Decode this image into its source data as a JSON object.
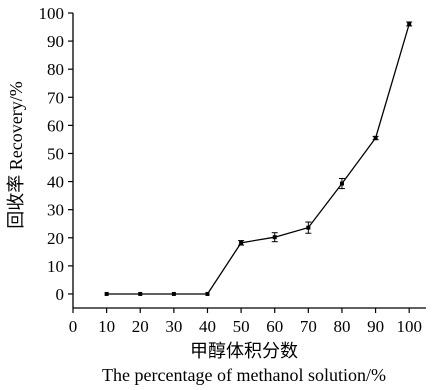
{
  "chart_data": {
    "type": "line",
    "xlabel_cn": "甲醇体积分数",
    "xlabel_en": "The percentage of methanol solution/%",
    "ylabel": "回收率 Recovery/%",
    "xlim": [
      0,
      105
    ],
    "ylim": [
      -5,
      100
    ],
    "xticks": [
      0,
      10,
      20,
      30,
      40,
      50,
      60,
      70,
      80,
      90,
      100
    ],
    "yticks": [
      0,
      10,
      20,
      30,
      40,
      50,
      60,
      70,
      80,
      90,
      100
    ],
    "grid": false,
    "series": [
      {
        "x": [
          10,
          20,
          30,
          40,
          50,
          60,
          70,
          80,
          90,
          100
        ],
        "y": [
          0,
          0,
          0,
          0,
          18.2,
          20.2,
          23.6,
          39.3,
          55.5,
          96.1
        ],
        "error": [
          0,
          0,
          0,
          0,
          0.8,
          1.6,
          2.0,
          1.8,
          0.6,
          0.7
        ]
      }
    ]
  }
}
